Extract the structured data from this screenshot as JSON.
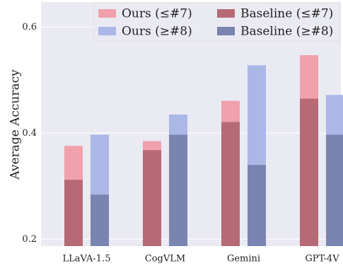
{
  "chart_data": {
    "type": "bar",
    "ylabel": "Average Accuracy",
    "categories": [
      "LLaVA-1.5",
      "CogVLM",
      "Gemini",
      "GPT-4V"
    ],
    "series": [
      {
        "name": "Ours (≤#7)",
        "color": "#f0a1ac",
        "values": [
          0.376,
          0.385,
          0.461,
          0.547
        ]
      },
      {
        "name": "Ours (≥#8)",
        "color": "#abb7e7",
        "values": [
          0.397,
          0.435,
          0.528,
          0.472
        ]
      },
      {
        "name": "Baseline (≤#7)",
        "color": "#b56a76",
        "values": [
          0.312,
          0.368,
          0.421,
          0.465
        ]
      },
      {
        "name": "Baseline (≥#8)",
        "color": "#7a84b0",
        "values": [
          0.284,
          0.397,
          0.34,
          0.397
        ]
      }
    ],
    "ylim": [
      0.187,
      0.647
    ],
    "yticks": [
      0.2,
      0.4,
      0.6
    ],
    "grid": true,
    "legend": "upper right"
  }
}
